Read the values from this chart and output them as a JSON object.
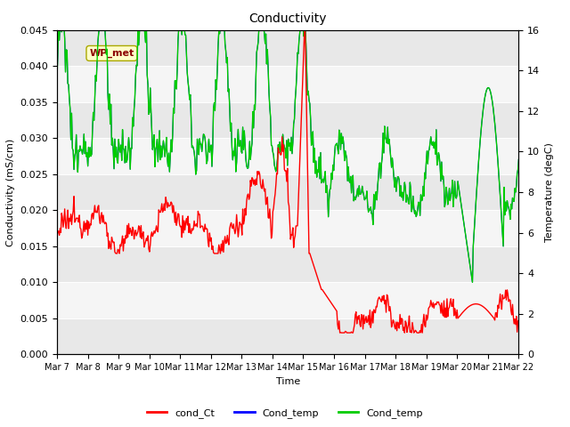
{
  "title": "Conductivity",
  "ylabel_left": "Conductivity (mS/cm)",
  "ylabel_right": "Temperature (degC)",
  "xlabel": "Time",
  "ylim_left": [
    0,
    0.045
  ],
  "ylim_right": [
    0,
    16
  ],
  "background_color": "#ffffff",
  "band_colors": [
    "#e8e8e8",
    "#f5f5f5"
  ],
  "wp_met_label": "WP_met",
  "x_tick_labels": [
    "Mar 7",
    "Mar 8",
    "Mar 9",
    "Mar 10",
    "Mar 11",
    "Mar 12",
    "Mar 13",
    "Mar 14",
    "Mar 15",
    "Mar 16",
    "Mar 17",
    "Mar 18",
    "Mar 19",
    "Mar 20",
    "Mar 21",
    "Mar 22"
  ],
  "ytick_labels": [
    "0.000",
    "0.005",
    "0.010",
    "0.015",
    "0.020",
    "0.025",
    "0.030",
    "0.035",
    "0.040",
    "0.045"
  ],
  "ytick_vals": [
    0.0,
    0.005,
    0.01,
    0.015,
    0.02,
    0.025,
    0.03,
    0.035,
    0.04,
    0.045
  ],
  "right_ytick_vals": [
    0,
    2,
    4,
    6,
    8,
    10,
    12,
    14,
    16
  ],
  "cond_color": "#ff0000",
  "temp_color": "#00cc00",
  "temp2_color": "#0000ff",
  "legend_labels": [
    "cond_Ct",
    "Cond_temp",
    "Cond_temp"
  ]
}
